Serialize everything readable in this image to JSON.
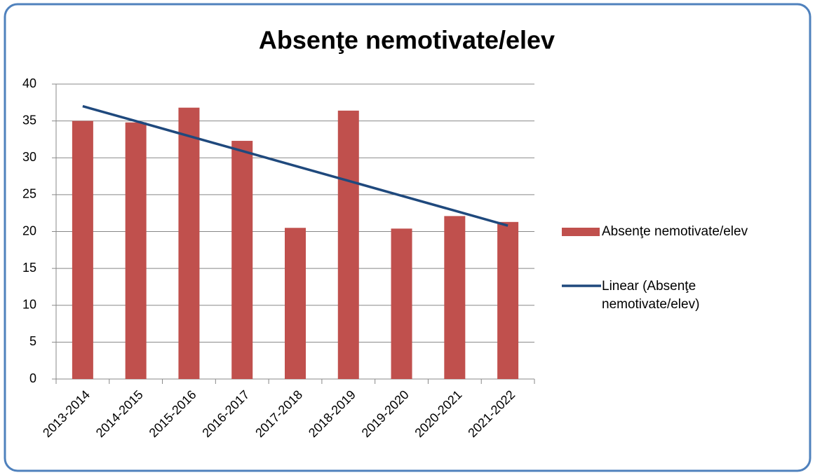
{
  "chart_data": {
    "type": "bar",
    "title": "Absenţe nemotivate/elev",
    "categories": [
      "2013-2014",
      "2014-2015",
      "2015-2016",
      "2016-2017",
      "2017-2018",
      "2018-2019",
      "2019-2020",
      "2020-2021",
      "2021-2022"
    ],
    "series": [
      {
        "name": "Absenţe nemotivate/elev",
        "color": "#c0504d",
        "values": [
          35,
          34.8,
          36.8,
          32.3,
          20.5,
          36.4,
          20.4,
          22.1,
          21.3
        ]
      }
    ],
    "trendline": {
      "type": "linear",
      "name": "Linear (Absenţe nemotivate/elev)",
      "color": "#1f497d",
      "values": [
        37,
        34.98,
        32.95,
        30.93,
        28.9,
        26.88,
        24.85,
        22.83,
        20.8
      ]
    },
    "ylim": [
      0,
      40
    ],
    "yticks": [
      0,
      5,
      10,
      15,
      20,
      25,
      30,
      35,
      40
    ],
    "grid": true,
    "legend": "right"
  }
}
